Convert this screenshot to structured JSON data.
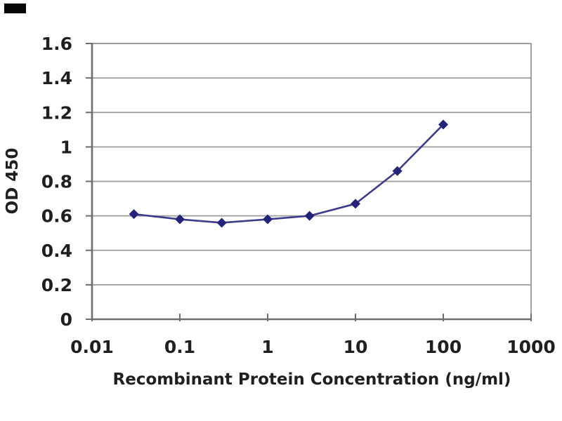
{
  "corner_mark": {
    "color": "#060606"
  },
  "style": {
    "background": "#ffffff",
    "grid_color": "#9c9c9c",
    "axis_color": "#6e6e6e",
    "border_color": "#8f8f8f",
    "text_color": "#1f1f1f",
    "series_line_color": "#3c3c8a",
    "series_marker_color": "#23237a"
  },
  "chart_data": {
    "type": "line",
    "title": "",
    "xlabel": "Recombinant Protein Concentration (ng/ml)",
    "ylabel": "OD 450",
    "x_scale": "log",
    "xlim": [
      0.01,
      1000
    ],
    "ylim": [
      0,
      1.6
    ],
    "x_tick_labels": [
      "0.01",
      "0.1",
      "1",
      "10",
      "100",
      "1000"
    ],
    "y_tick_labels": [
      "0",
      "0.2",
      "0.4",
      "0.6",
      "0.8",
      "1",
      "1.2",
      "1.4",
      "1.6"
    ],
    "grid": "horizontal",
    "legend": false,
    "series": [
      {
        "name": "OD 450",
        "marker": "diamond",
        "x": [
          0.03,
          0.1,
          0.3,
          1,
          3,
          10,
          30,
          100
        ],
        "y": [
          0.61,
          0.58,
          0.56,
          0.58,
          0.6,
          0.67,
          0.86,
          1.13
        ]
      }
    ]
  }
}
